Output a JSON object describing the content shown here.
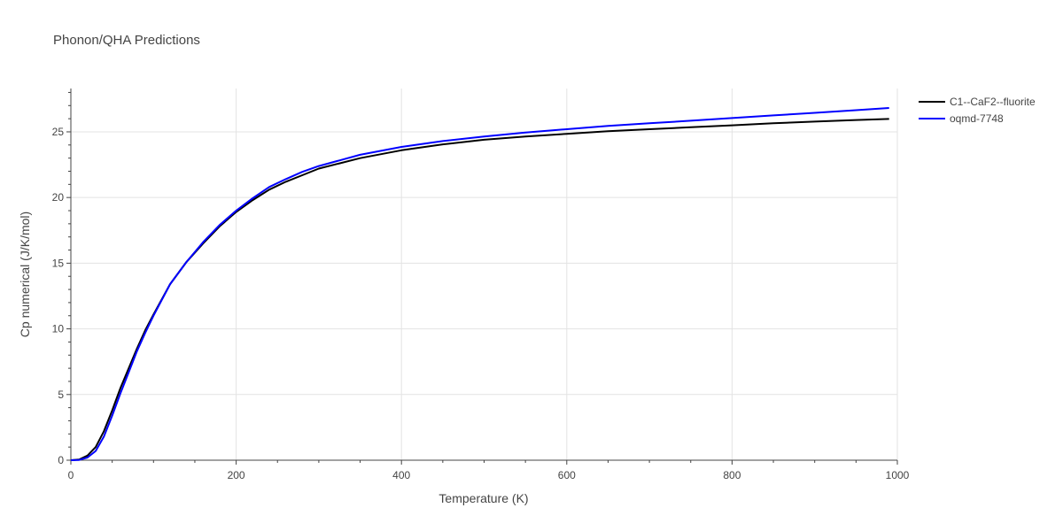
{
  "chart_data": {
    "type": "line",
    "title": "Phonon/QHA Predictions",
    "xlabel": "Temperature (K)",
    "ylabel": "Cp numerical (J/K/mol)",
    "xlim": [
      0,
      1000
    ],
    "ylim": [
      0,
      28.3
    ],
    "xticks": [
      0,
      200,
      400,
      600,
      800,
      1000
    ],
    "yticks": [
      0,
      5,
      10,
      15,
      20,
      25
    ],
    "grid": true,
    "legend_position": "top-right",
    "series": [
      {
        "name": "C1--CaF2--fluorite",
        "color": "#000000",
        "x": [
          0,
          10,
          20,
          30,
          40,
          50,
          60,
          70,
          80,
          90,
          100,
          120,
          140,
          160,
          180,
          200,
          220,
          240,
          260,
          280,
          300,
          350,
          400,
          450,
          500,
          550,
          600,
          650,
          700,
          750,
          800,
          850,
          900,
          950,
          990
        ],
        "y": [
          0,
          0.05,
          0.35,
          1.0,
          2.2,
          3.8,
          5.5,
          7.0,
          8.5,
          9.9,
          11.1,
          13.4,
          15.1,
          16.5,
          17.8,
          18.9,
          19.8,
          20.6,
          21.2,
          21.7,
          22.2,
          23.0,
          23.6,
          24.05,
          24.4,
          24.65,
          24.85,
          25.05,
          25.2,
          25.35,
          25.5,
          25.65,
          25.78,
          25.9,
          25.98
        ]
      },
      {
        "name": "oqmd-7748",
        "color": "#0000ff",
        "x": [
          0,
          10,
          20,
          30,
          40,
          50,
          60,
          70,
          80,
          90,
          100,
          120,
          140,
          160,
          180,
          200,
          220,
          240,
          260,
          280,
          300,
          350,
          400,
          450,
          500,
          550,
          600,
          650,
          700,
          750,
          800,
          850,
          900,
          950,
          990
        ],
        "y": [
          0,
          0.02,
          0.2,
          0.7,
          1.8,
          3.4,
          5.1,
          6.7,
          8.3,
          9.7,
          11.0,
          13.4,
          15.1,
          16.6,
          17.9,
          19.0,
          19.95,
          20.8,
          21.4,
          21.95,
          22.4,
          23.25,
          23.85,
          24.3,
          24.65,
          24.95,
          25.2,
          25.45,
          25.65,
          25.85,
          26.05,
          26.25,
          26.45,
          26.65,
          26.82
        ]
      }
    ]
  }
}
